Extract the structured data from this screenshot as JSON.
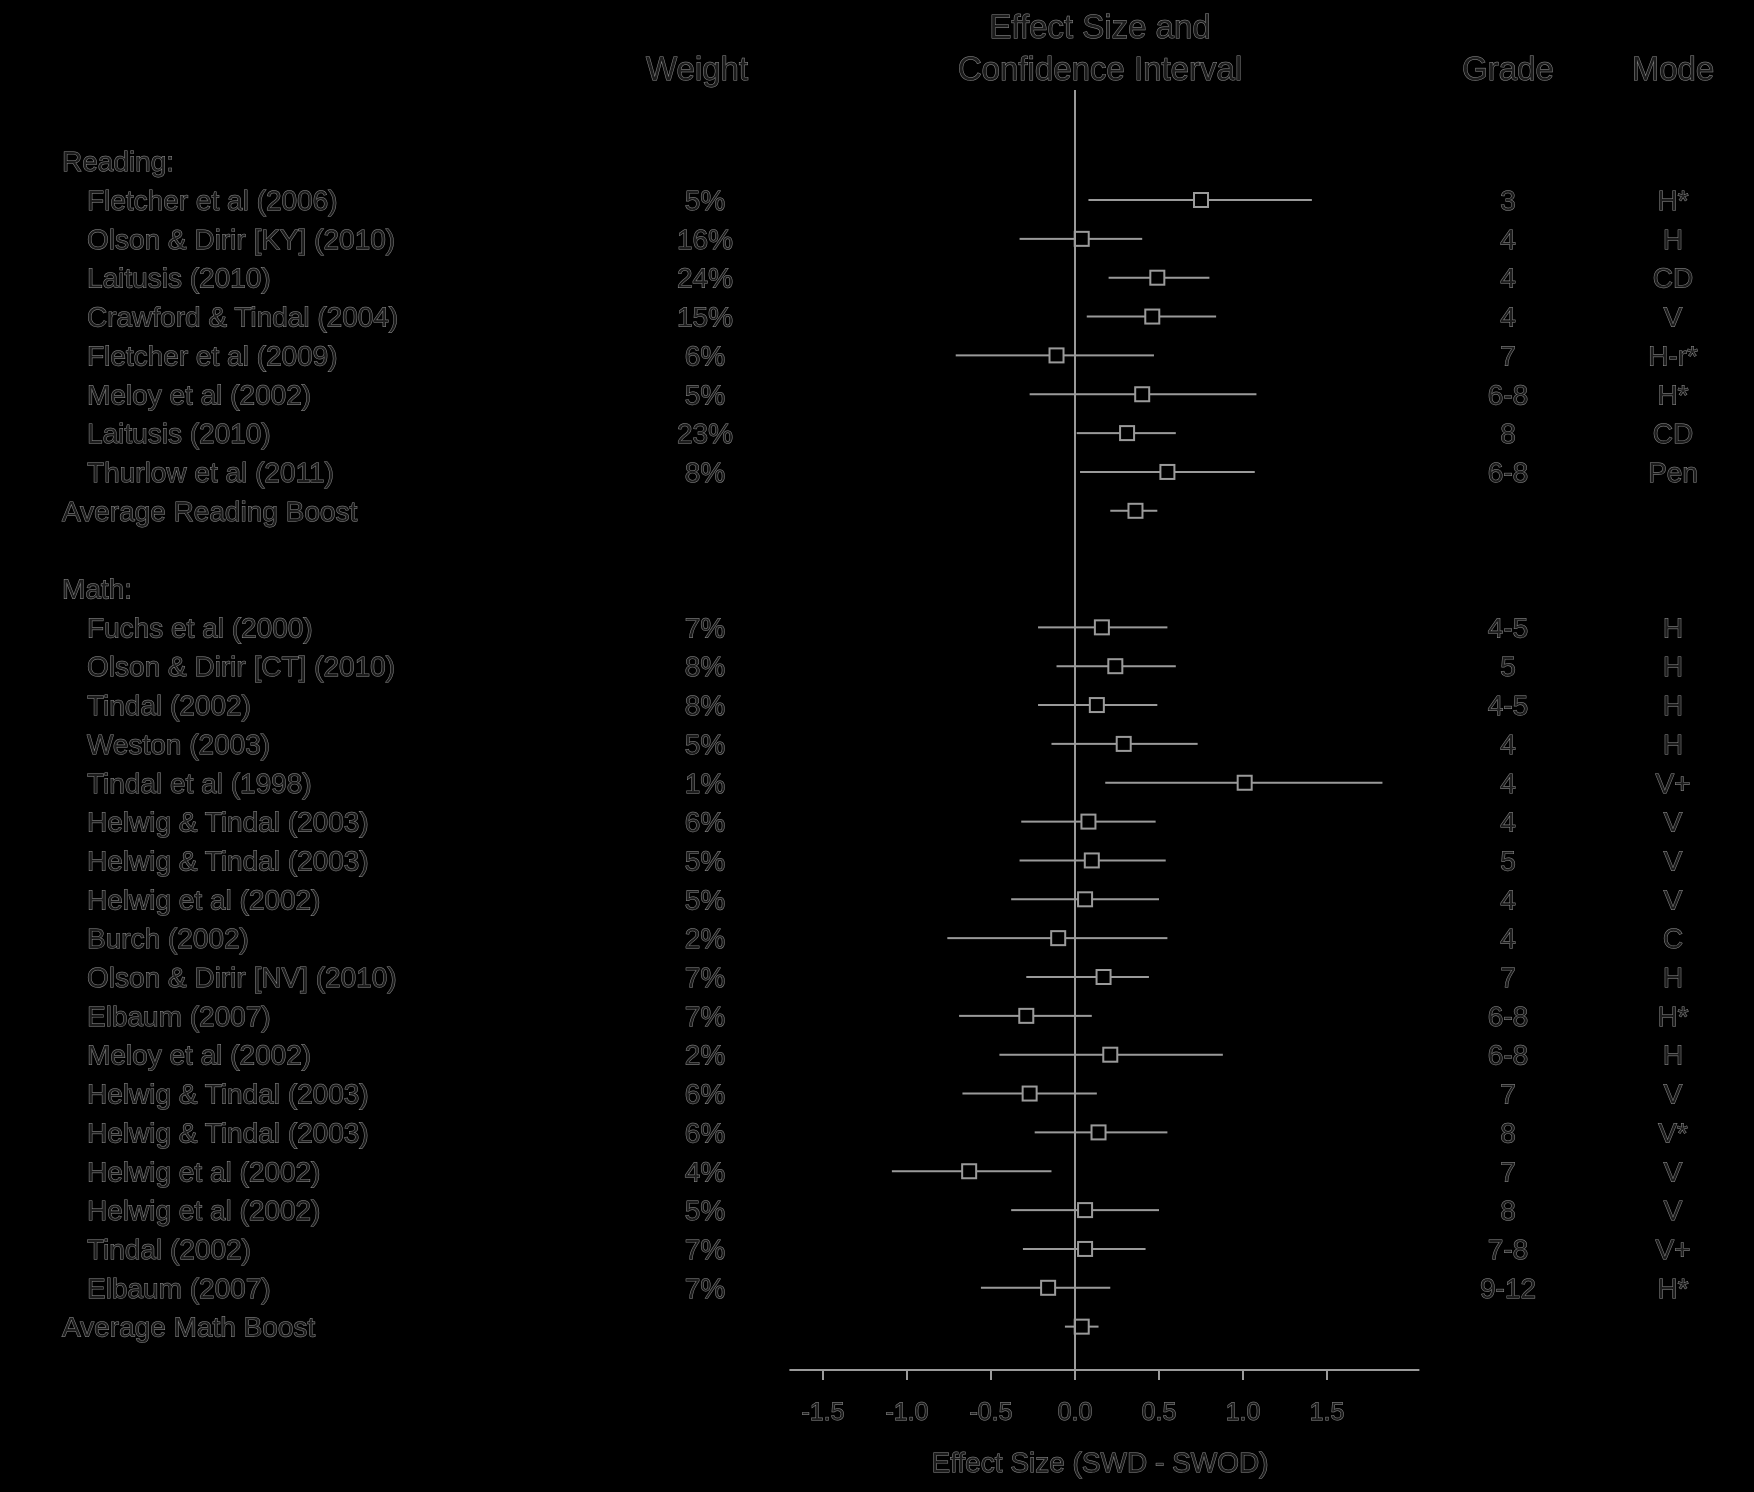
{
  "chart_data": {
    "type": "forest",
    "headers": {
      "weight": "Weight",
      "effect_line1": "Effect Size and",
      "effect_line2": "Confidence Interval",
      "grade": "Grade",
      "mode": "Mode"
    },
    "xlabel": "Effect Size (SWD - SWOD)",
    "xlim": [
      -1.7,
      2.05
    ],
    "ticks": [
      -1.5,
      -1.0,
      -0.5,
      0.0,
      0.5,
      1.0,
      1.5
    ],
    "tick_labels": [
      "-1.5",
      "-1.0",
      "-0.5",
      "0.0",
      "0.5",
      "1.0",
      "1.5"
    ],
    "grid": false,
    "groups": [
      {
        "label": "Reading:",
        "studies": [
          {
            "study": "Fletcher et al  (2006)",
            "weight": "5%",
            "effect": 0.75,
            "ci": [
              0.08,
              1.41
            ],
            "grade": "3",
            "mode": "H*"
          },
          {
            "study": "Olson & Dirir [KY] (2010)",
            "weight": "16%",
            "effect": 0.04,
            "ci": [
              -0.33,
              0.4
            ],
            "grade": "4",
            "mode": "H"
          },
          {
            "study": "Laitusis (2010)",
            "weight": "24%",
            "effect": 0.49,
            "ci": [
              0.2,
              0.8
            ],
            "grade": "4",
            "mode": "CD"
          },
          {
            "study": "Crawford & Tindal (2004)",
            "weight": "15%",
            "effect": 0.46,
            "ci": [
              0.07,
              0.84
            ],
            "grade": "4",
            "mode": "V"
          },
          {
            "study": "Fletcher et al  (2009)",
            "weight": "6%",
            "effect": -0.11,
            "ci": [
              -0.71,
              0.47
            ],
            "grade": "7",
            "mode": "H-r*"
          },
          {
            "study": "Meloy et al  (2002)",
            "weight": "5%",
            "effect": 0.4,
            "ci": [
              -0.27,
              1.08
            ],
            "grade": "6-8",
            "mode": "H*"
          },
          {
            "study": "Laitusis (2010)",
            "weight": "23%",
            "effect": 0.31,
            "ci": [
              0.01,
              0.6
            ],
            "grade": "8",
            "mode": "CD"
          },
          {
            "study": "Thurlow et al (2011)",
            "weight": "8%",
            "effect": 0.55,
            "ci": [
              0.03,
              1.07
            ],
            "grade": "6-8",
            "mode": "Pen"
          }
        ],
        "average": {
          "label": "Average Reading Boost",
          "effect": 0.36,
          "ci": [
            0.21,
            0.49
          ]
        }
      },
      {
        "label": "Math:",
        "studies": [
          {
            "study": "Fuchs et al  (2000)",
            "weight": "7%",
            "effect": 0.16,
            "ci": [
              -0.22,
              0.55
            ],
            "grade": "4-5",
            "mode": "H"
          },
          {
            "study": "Olson & Dirir [CT] (2010)",
            "weight": "8%",
            "effect": 0.24,
            "ci": [
              -0.11,
              0.6
            ],
            "grade": "5",
            "mode": "H"
          },
          {
            "study": "Tindal (2002)",
            "weight": "8%",
            "effect": 0.13,
            "ci": [
              -0.22,
              0.49
            ],
            "grade": "4-5",
            "mode": "H"
          },
          {
            "study": "Weston (2003)",
            "weight": "5%",
            "effect": 0.29,
            "ci": [
              -0.14,
              0.73
            ],
            "grade": "4",
            "mode": "H"
          },
          {
            "study": "Tindal et al  (1998)",
            "weight": "1%",
            "effect": 1.01,
            "ci": [
              0.18,
              1.83
            ],
            "grade": "4",
            "mode": "V+"
          },
          {
            "study": "Helwig & Tindal (2003)",
            "weight": "6%",
            "effect": 0.08,
            "ci": [
              -0.32,
              0.48
            ],
            "grade": "4",
            "mode": "V"
          },
          {
            "study": "Helwig & Tindal (2003)",
            "weight": "5%",
            "effect": 0.1,
            "ci": [
              -0.33,
              0.54
            ],
            "grade": "5",
            "mode": "V"
          },
          {
            "study": "Helwig et al  (2002)",
            "weight": "5%",
            "effect": 0.06,
            "ci": [
              -0.38,
              0.5
            ],
            "grade": "4",
            "mode": "V"
          },
          {
            "study": "Burch (2002)",
            "weight": "2%",
            "effect": -0.1,
            "ci": [
              -0.76,
              0.55
            ],
            "grade": "4",
            "mode": "C"
          },
          {
            "study": "Olson & Dirir [NV] (2010)",
            "weight": "7%",
            "effect": 0.17,
            "ci": [
              -0.29,
              0.44
            ],
            "grade": "7",
            "mode": "H"
          },
          {
            "study": "Elbaum (2007)",
            "weight": "7%",
            "effect": -0.29,
            "ci": [
              -0.69,
              0.1
            ],
            "grade": "6-8",
            "mode": "H*"
          },
          {
            "study": "Meloy et al  (2002)",
            "weight": "2%",
            "effect": 0.21,
            "ci": [
              -0.45,
              0.88
            ],
            "grade": "6-8",
            "mode": "H"
          },
          {
            "study": "Helwig & Tindal (2003)",
            "weight": "6%",
            "effect": -0.27,
            "ci": [
              -0.67,
              0.13
            ],
            "grade": "7",
            "mode": "V"
          },
          {
            "study": "Helwig & Tindal (2003)",
            "weight": "6%",
            "effect": 0.14,
            "ci": [
              -0.24,
              0.55
            ],
            "grade": "8",
            "mode": "V*"
          },
          {
            "study": "Helwig et al  (2002)",
            "weight": "4%",
            "effect": -0.63,
            "ci": [
              -1.09,
              -0.14
            ],
            "grade": "7",
            "mode": "V"
          },
          {
            "study": "Helwig et al  (2002)",
            "weight": "5%",
            "effect": 0.06,
            "ci": [
              -0.38,
              0.5
            ],
            "grade": "8",
            "mode": "V"
          },
          {
            "study": "Tindal (2002)",
            "weight": "7%",
            "effect": 0.06,
            "ci": [
              -0.31,
              0.42
            ],
            "grade": "7-8",
            "mode": "V+"
          },
          {
            "study": "Elbaum (2007)",
            "weight": "7%",
            "effect": -0.16,
            "ci": [
              -0.56,
              0.21
            ],
            "grade": "9-12",
            "mode": "H*"
          }
        ],
        "average": {
          "label": "Average Math Boost",
          "effect": 0.04,
          "ci": [
            -0.06,
            0.14
          ]
        }
      }
    ]
  }
}
